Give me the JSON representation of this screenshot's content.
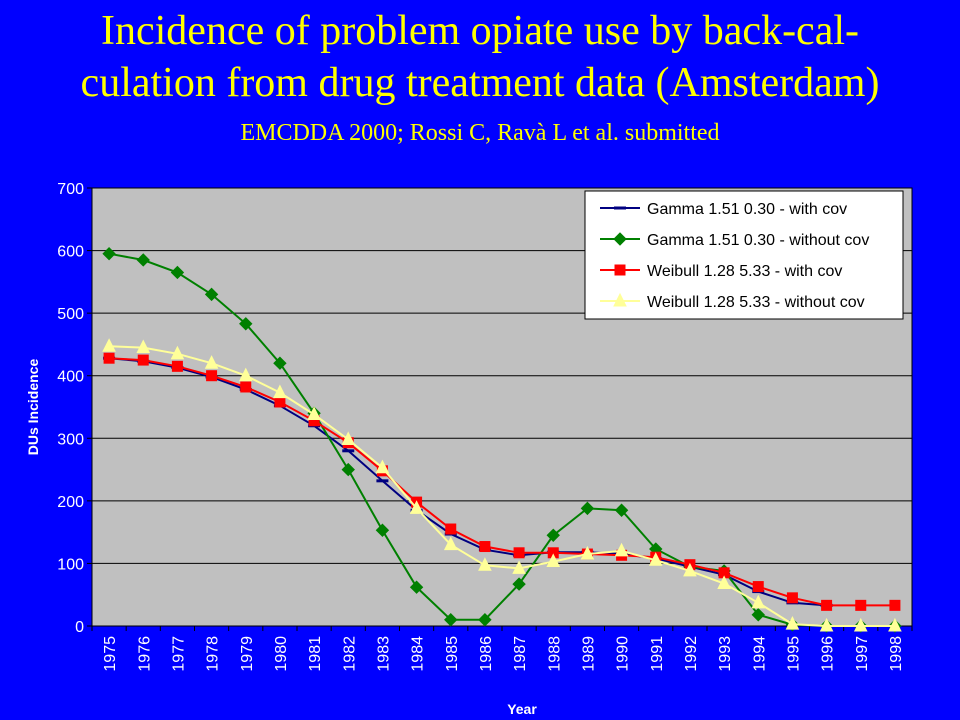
{
  "slide": {
    "title_line1": "Incidence of problem opiate use by back-cal-",
    "title_line2": "culation from drug treatment data (Amsterdam)",
    "subtitle": "EMCDDA 2000; Rossi C, Ravà L et al. submitted"
  },
  "colors": {
    "background": "#0000FF",
    "title": "#FFFF00",
    "plot_area": "#C0C0C0",
    "legend_bg": "#FFFFFF"
  },
  "chart_data": {
    "type": "line",
    "xlabel": "Year",
    "ylabel": "DUs Incidence",
    "ylim": [
      0,
      700
    ],
    "yticks": [
      0,
      100,
      200,
      300,
      400,
      500,
      600,
      700
    ],
    "grid": true,
    "legend_position": "top-right",
    "categories": [
      "1975",
      "1976",
      "1977",
      "1978",
      "1979",
      "1980",
      "1981",
      "1982",
      "1983",
      "1984",
      "1985",
      "1986",
      "1987",
      "1988",
      "1989",
      "1990",
      "1991",
      "1992",
      "1993",
      "1994",
      "1995",
      "1996",
      "1997",
      "1998"
    ],
    "series": [
      {
        "name": "Gamma 1.51 0.30 - with cov",
        "color": "#000080",
        "marker": "dash",
        "values": [
          428,
          423,
          413,
          398,
          378,
          352,
          320,
          280,
          232,
          185,
          147,
          122,
          113,
          118,
          118,
          115,
          108,
          95,
          82,
          55,
          37,
          33,
          null,
          null
        ]
      },
      {
        "name": "Gamma 1.51 0.30 - without cov",
        "color": "#008000",
        "marker": "diamond",
        "values": [
          595,
          585,
          565,
          530,
          483,
          420,
          340,
          250,
          153,
          62,
          10,
          10,
          67,
          145,
          188,
          185,
          123,
          95,
          88,
          18,
          2,
          0,
          0,
          0
        ]
      },
      {
        "name": "Weibull 1.28 5.33 - with cov",
        "color": "#FF0000",
        "marker": "square",
        "values": [
          428,
          425,
          415,
          400,
          382,
          358,
          328,
          293,
          248,
          198,
          155,
          127,
          117,
          117,
          115,
          113,
          110,
          98,
          85,
          63,
          45,
          33,
          33,
          33
        ]
      },
      {
        "name": "Weibull 1.28 5.33 - without cov",
        "color": "#FFFF99",
        "marker": "triangle",
        "values": [
          447,
          445,
          435,
          420,
          400,
          373,
          338,
          298,
          253,
          188,
          130,
          97,
          92,
          103,
          115,
          120,
          105,
          88,
          68,
          37,
          3,
          0,
          0,
          0
        ]
      }
    ]
  }
}
